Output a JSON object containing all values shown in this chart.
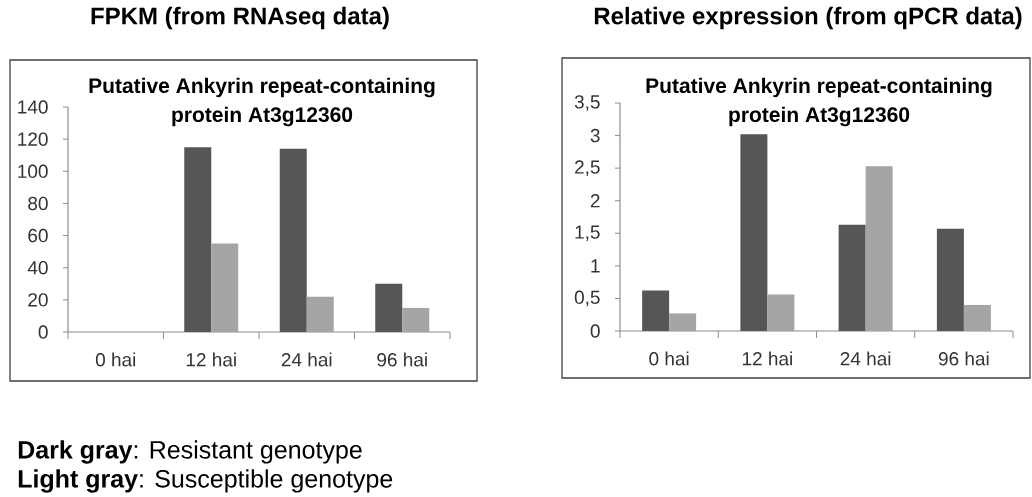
{
  "chart_data": [
    {
      "type": "bar",
      "title": "FPKM (from RNAseq data)",
      "subtitle": "Putative Ankyrin repeat-containing protein At3g12360",
      "categories": [
        "0 hai",
        "12 hai",
        "24 hai",
        "96 hai"
      ],
      "series": [
        {
          "color": "#565656",
          "values": [
            0,
            115,
            114,
            30
          ]
        },
        {
          "color": "#a5a5a5",
          "values": [
            0,
            55,
            22,
            15
          ]
        }
      ],
      "ylim": [
        0,
        140
      ],
      "yticks": [
        0,
        20,
        40,
        60,
        80,
        100,
        120,
        140
      ],
      "annotations": [
        "**Dark gray**: Resistant genotype",
        "**Light gray**: Susceptible genotype"
      ]
    },
    {
      "type": "bar",
      "title": "Relative expression (from qPCR data)",
      "subtitle": "Putative Ankyrin repeat-containing protein At3g12360",
      "categories": [
        "0 hai",
        "12 hai",
        "24 hai",
        "96 hai"
      ],
      "series": [
        {
          "color": "#565656",
          "values": [
            0.62,
            3.02,
            1.63,
            1.57
          ]
        },
        {
          "color": "#a5a5a5",
          "values": [
            0.27,
            0.56,
            2.53,
            0.4
          ]
        }
      ],
      "ylim": [
        0,
        3.5
      ],
      "yticks": [
        0,
        {
          "value": 0.5,
          "label": "0,5"
        },
        1,
        {
          "value": 1.5,
          "label": "1,5"
        },
        2,
        {
          "value": 2.5,
          "label": "2,5"
        },
        3,
        {
          "value": 3.5,
          "label": "3,5"
        }
      ]
    }
  ]
}
